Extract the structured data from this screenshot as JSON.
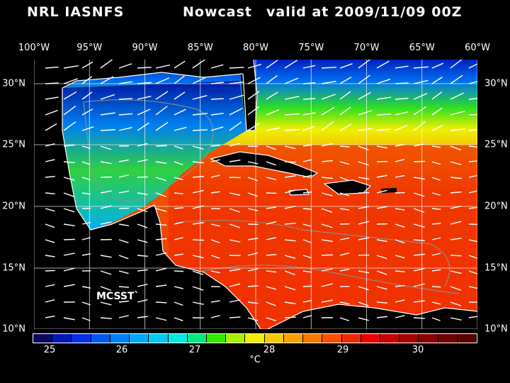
{
  "title": {
    "source": "NRL IASNFS",
    "product": "Nowcast",
    "valid": "valid at 2009/11/09 00Z"
  },
  "lon_labels": [
    "100°W",
    "95°W",
    "90°W",
    "85°W",
    "80°W",
    "75°W",
    "70°W",
    "65°W",
    "60°W"
  ],
  "lat_labels": [
    "30°N",
    "25°N",
    "20°N",
    "15°N",
    "10°N"
  ],
  "colorbar": {
    "colors": [
      "#0a0a60",
      "#0018b8",
      "#0030e8",
      "#0058f0",
      "#0080f8",
      "#00a8f8",
      "#00c8f0",
      "#00e8e0",
      "#00e880",
      "#30e800",
      "#a8f000",
      "#f0f000",
      "#f8c800",
      "#f8a000",
      "#f87800",
      "#f85000",
      "#f02800",
      "#e80000",
      "#c80000",
      "#a80000",
      "#880000",
      "#700000",
      "#580000"
    ],
    "tick_labels": [
      "25",
      "26",
      "27",
      "28",
      "29",
      "30"
    ],
    "unit": "°C"
  },
  "sensor_label": "MCSST`",
  "map_colors": {
    "cold": "#0020c0",
    "cool": "#00a0f0",
    "mid": "#30e020",
    "warm": "#f0a000",
    "hot": "#f03000",
    "land": "#000000",
    "coast": "#ffffff",
    "contour": "#909090",
    "grid": "#ffffff"
  }
}
